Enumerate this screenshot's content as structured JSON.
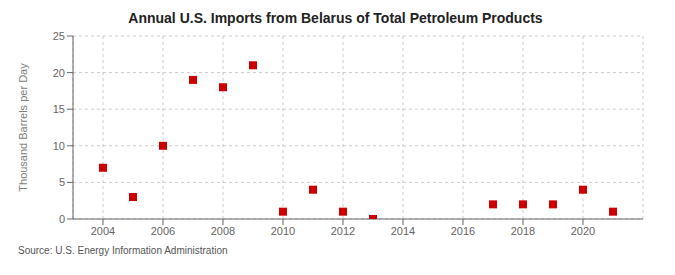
{
  "chart_data": {
    "type": "scatter",
    "title": "Annual U.S. Imports from Belarus of Total Petroleum Products",
    "ylabel": "Thousand Barrels per Day",
    "annotations": [
      "Source: U.S. Energy Information Administration"
    ],
    "x": [
      2004,
      2005,
      2006,
      2007,
      2008,
      2009,
      2010,
      2011,
      2012,
      2013,
      2017,
      2018,
      2019,
      2020,
      2021
    ],
    "values": [
      7,
      3,
      10,
      19,
      18,
      21,
      1,
      4,
      1,
      0,
      2,
      2,
      2,
      4,
      1
    ],
    "color": "#cc0000",
    "marker": "square",
    "xlim": [
      2003,
      2022
    ],
    "ylim": [
      0,
      25
    ],
    "xticks": [
      2004,
      2006,
      2008,
      2010,
      2012,
      2014,
      2016,
      2018,
      2020
    ],
    "yticks": [
      0,
      5,
      10,
      15,
      20,
      25
    ],
    "grid": true
  }
}
